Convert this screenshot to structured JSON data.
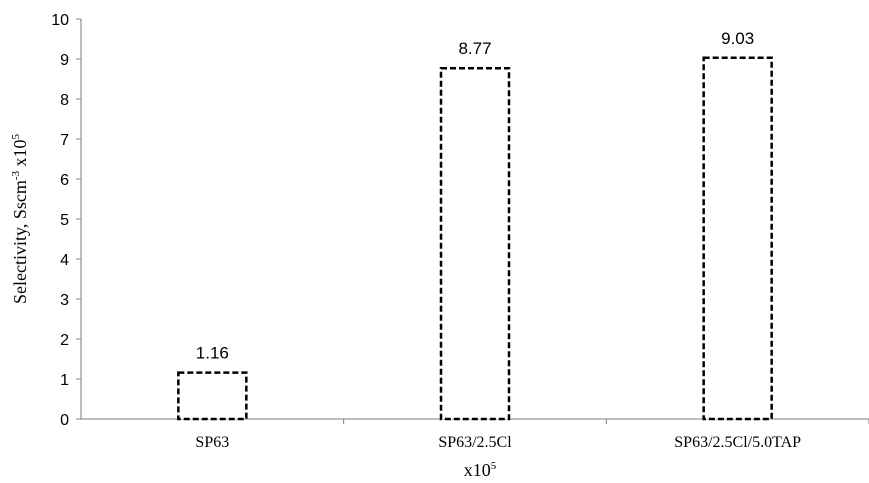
{
  "chart_data": {
    "type": "bar",
    "categories": [
      "SP63",
      "SP63/2.5Cl",
      "SP63/2.5Cl/5.0TAP"
    ],
    "values": [
      1.16,
      8.77,
      9.03
    ],
    "data_labels": [
      "1.16",
      "8.77",
      "9.03"
    ],
    "title": "",
    "xlabel": "x10",
    "xlabel_superscript": "5",
    "ylabel": "Selectivity, Sscm",
    "ylabel_sup1": "-3",
    "ylabel_mid": " x10",
    "ylabel_sup2": "5",
    "ylim": [
      0,
      10
    ],
    "yticks": [
      "0",
      "1",
      "2",
      "3",
      "4",
      "5",
      "6",
      "7",
      "8",
      "9",
      "10"
    ],
    "grid": false,
    "legend": "none",
    "bar_fill": "#ffffff",
    "bar_stroke": "#000000",
    "bar_style": "dashed outline"
  }
}
